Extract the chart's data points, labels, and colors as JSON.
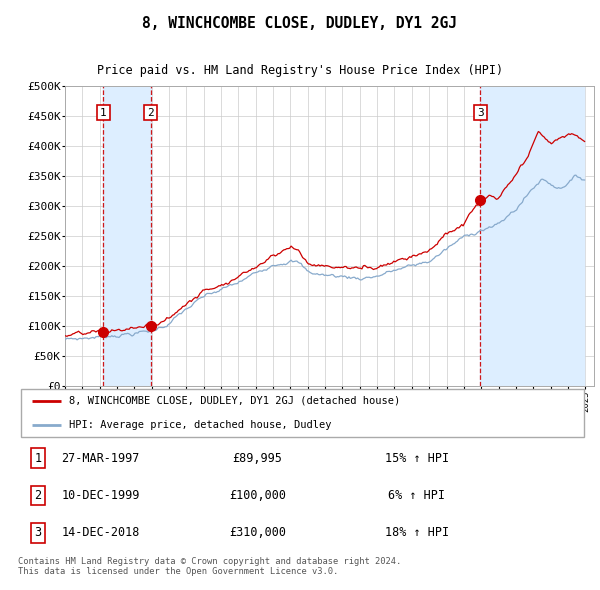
{
  "title": "8, WINCHCOMBE CLOSE, DUDLEY, DY1 2GJ",
  "subtitle": "Price paid vs. HM Land Registry's House Price Index (HPI)",
  "legend_red": "8, WINCHCOMBE CLOSE, DUDLEY, DY1 2GJ (detached house)",
  "legend_blue": "HPI: Average price, detached house, Dudley",
  "footer": "Contains HM Land Registry data © Crown copyright and database right 2024.\nThis data is licensed under the Open Government Licence v3.0.",
  "transactions": [
    {
      "num": 1,
      "date": "27-MAR-1997",
      "price": 89995,
      "pct": "15%",
      "dir": "↑",
      "year": 1997.23
    },
    {
      "num": 2,
      "date": "10-DEC-1999",
      "price": 100000,
      "pct": "6%",
      "dir": "↑",
      "year": 1999.94
    },
    {
      "num": 3,
      "date": "14-DEC-2018",
      "price": 310000,
      "pct": "18%",
      "dir": "↑",
      "year": 2018.95
    }
  ],
  "ylim": [
    0,
    500000
  ],
  "yticks": [
    0,
    50000,
    100000,
    150000,
    200000,
    250000,
    300000,
    350000,
    400000,
    450000,
    500000
  ],
  "red_color": "#cc0000",
  "blue_color": "#88aacc",
  "dashed_color": "#cc0000",
  "shade_color": "#ddeeff"
}
